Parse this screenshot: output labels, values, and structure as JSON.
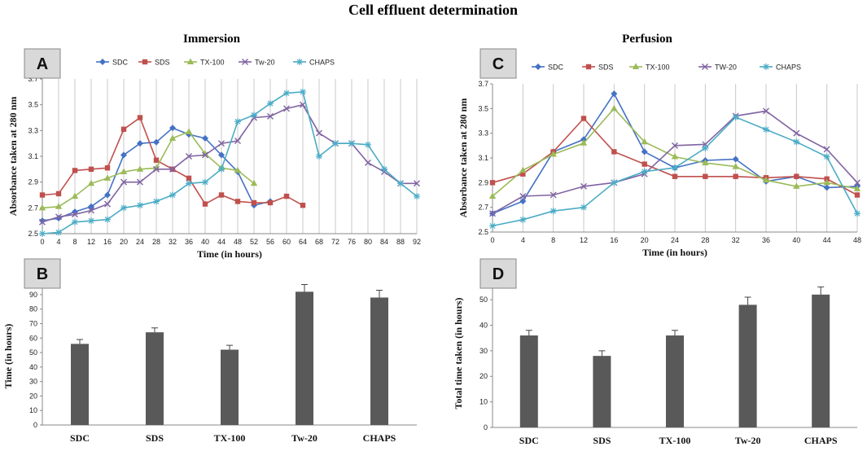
{
  "figure": {
    "title": "Cell effluent determination",
    "immersion_title": "Immersion",
    "perfusion_title": "Perfusion"
  },
  "colors": {
    "SDC": "#4472c4",
    "SDS": "#c0504d",
    "TX-100": "#9bbb59",
    "TW-20": "#8064a2",
    "CHAPS": "#4bacc6",
    "bar": "#595959"
  },
  "chart_data": [
    {
      "panel": "A",
      "type": "line",
      "title": "Immersion",
      "xlabel": "Time (in hours)",
      "ylabel": "Absorbance  taken at 280 nm",
      "ylim": [
        2.5,
        3.7
      ],
      "yticks": [
        "2.5",
        "2.7",
        "2.9",
        "3.1",
        "3.3",
        "3.5",
        "3.7"
      ],
      "x": [
        0,
        4,
        8,
        12,
        16,
        20,
        24,
        28,
        32,
        36,
        40,
        44,
        48,
        52,
        56,
        60,
        64,
        68,
        72,
        76,
        80,
        84,
        88,
        92
      ],
      "legend": [
        "SDC",
        "SDS",
        "TX-100",
        "Tw-20",
        "CHAPS"
      ],
      "series": [
        {
          "name": "SDC",
          "color_key": "SDC",
          "marker": "diamond",
          "x": [
            0,
            4,
            8,
            12,
            16,
            20,
            24,
            28,
            32,
            36,
            40,
            44,
            48,
            52,
            56
          ],
          "values": [
            2.6,
            2.62,
            2.67,
            2.71,
            2.8,
            3.11,
            3.2,
            3.21,
            3.32,
            3.27,
            3.24,
            3.11,
            2.98,
            2.72,
            2.75
          ]
        },
        {
          "name": "SDS",
          "color_key": "SDS",
          "marker": "square",
          "x": [
            0,
            4,
            8,
            12,
            16,
            20,
            24,
            28,
            32,
            36,
            40,
            44,
            48,
            52,
            56,
            60,
            64
          ],
          "values": [
            2.8,
            2.81,
            2.99,
            3.0,
            3.01,
            3.31,
            3.4,
            3.07,
            3.0,
            2.93,
            2.73,
            2.8,
            2.75,
            2.74,
            2.74,
            2.79,
            2.72
          ]
        },
        {
          "name": "TX-100",
          "color_key": "TX-100",
          "marker": "triangle",
          "x": [
            0,
            4,
            8,
            12,
            16,
            20,
            24,
            28,
            32,
            36,
            40,
            44,
            48,
            52
          ],
          "values": [
            2.7,
            2.71,
            2.79,
            2.89,
            2.93,
            2.98,
            3.0,
            3.01,
            3.24,
            3.29,
            3.12,
            3.01,
            2.99,
            2.89
          ]
        },
        {
          "name": "Tw-20",
          "color_key": "TW-20",
          "marker": "x",
          "x": [
            0,
            4,
            8,
            12,
            16,
            20,
            24,
            28,
            32,
            36,
            40,
            44,
            48,
            52,
            56,
            60,
            64,
            68,
            72,
            76,
            80,
            84,
            88,
            92
          ],
          "values": [
            2.59,
            2.63,
            2.65,
            2.68,
            2.73,
            2.9,
            2.9,
            3.0,
            3.0,
            3.1,
            3.11,
            3.2,
            3.22,
            3.4,
            3.41,
            3.47,
            3.5,
            3.28,
            3.2,
            3.2,
            3.05,
            2.98,
            2.89,
            2.89
          ]
        },
        {
          "name": "CHAPS",
          "color_key": "CHAPS",
          "marker": "star",
          "x": [
            0,
            4,
            8,
            12,
            16,
            20,
            24,
            28,
            32,
            36,
            40,
            44,
            48,
            52,
            56,
            60,
            64,
            68,
            72,
            76,
            80,
            84,
            88,
            92
          ],
          "values": [
            2.5,
            2.51,
            2.59,
            2.6,
            2.61,
            2.7,
            2.72,
            2.75,
            2.8,
            2.89,
            2.9,
            3.0,
            3.37,
            3.42,
            3.51,
            3.59,
            3.6,
            3.1,
            3.2,
            3.2,
            3.19,
            3.0,
            2.89,
            2.79
          ]
        }
      ]
    },
    {
      "panel": "B",
      "type": "bar",
      "categories": [
        "SDC",
        "SDS",
        "TX-100",
        "Tw-20",
        "CHAPS"
      ],
      "values": [
        56,
        64,
        52,
        92,
        88
      ],
      "errors": [
        3,
        3,
        3,
        5,
        5
      ],
      "ylabel": "Time (in hours)",
      "ylim": [
        0,
        95
      ],
      "yticks": [
        "0",
        "10",
        "20",
        "30",
        "40",
        "50",
        "60",
        "70",
        "80",
        "90"
      ]
    },
    {
      "panel": "C",
      "type": "line",
      "title": "Perfusion",
      "xlabel": "Time (in hours)",
      "ylabel": "Absorbance  taken at 280 nm",
      "ylim": [
        2.5,
        3.7
      ],
      "yticks": [
        "2.5",
        "2.7",
        "2.9",
        "3.1",
        "3.3",
        "3.5",
        "3.7"
      ],
      "x": [
        0,
        4,
        8,
        12,
        16,
        20,
        24,
        28,
        32,
        36,
        40,
        44,
        48
      ],
      "legend": [
        "SDC",
        "SDS",
        "TX-100",
        "TW-20",
        "CHAPS"
      ],
      "series": [
        {
          "name": "SDC",
          "color_key": "SDC",
          "marker": "diamond",
          "x": [
            0,
            4,
            8,
            12,
            16,
            20,
            24,
            28,
            32,
            36,
            40,
            44,
            48
          ],
          "values": [
            2.65,
            2.75,
            3.15,
            3.25,
            3.62,
            3.15,
            3.02,
            3.08,
            3.09,
            2.91,
            2.95,
            2.86,
            2.87
          ]
        },
        {
          "name": "SDS",
          "color_key": "SDS",
          "marker": "square",
          "x": [
            0,
            4,
            8,
            12,
            16,
            20,
            24,
            28,
            32,
            36,
            40,
            44,
            48
          ],
          "values": [
            2.9,
            2.97,
            3.15,
            3.42,
            3.15,
            3.05,
            2.95,
            2.95,
            2.95,
            2.94,
            2.95,
            2.93,
            2.8
          ]
        },
        {
          "name": "TX-100",
          "color_key": "TX-100",
          "marker": "triangle",
          "x": [
            0,
            4,
            8,
            12,
            16,
            20,
            24,
            28,
            32,
            36,
            40,
            44,
            48
          ],
          "values": [
            2.79,
            3.0,
            3.13,
            3.22,
            3.5,
            3.23,
            3.11,
            3.06,
            3.03,
            2.92,
            2.87,
            2.9,
            2.85
          ]
        },
        {
          "name": "TW-20",
          "color_key": "TW-20",
          "marker": "x",
          "x": [
            0,
            4,
            8,
            12,
            16,
            20,
            24,
            28,
            32,
            36,
            40,
            44,
            48
          ],
          "values": [
            2.65,
            2.79,
            2.8,
            2.87,
            2.9,
            2.97,
            3.2,
            3.21,
            3.44,
            3.48,
            3.3,
            3.17,
            2.9
          ]
        },
        {
          "name": "CHAPS",
          "color_key": "CHAPS",
          "marker": "star",
          "x": [
            0,
            4,
            8,
            12,
            16,
            20,
            24,
            28,
            32,
            36,
            40,
            44,
            48
          ],
          "values": [
            2.55,
            2.6,
            2.67,
            2.7,
            2.9,
            2.99,
            3.02,
            3.18,
            3.43,
            3.33,
            3.23,
            3.11,
            2.65
          ]
        }
      ]
    },
    {
      "panel": "D",
      "type": "bar",
      "categories": [
        "SDC",
        "SDS",
        "TX-100",
        "Tw-20",
        "CHAPS"
      ],
      "values": [
        36,
        28,
        36,
        48,
        52
      ],
      "errors": [
        2,
        2,
        2,
        3,
        3
      ],
      "ylabel": "Total time taken (in hours)",
      "ylim": [
        0,
        58
      ],
      "yticks": [
        "0",
        "10",
        "20",
        "30",
        "40",
        "50"
      ]
    }
  ]
}
